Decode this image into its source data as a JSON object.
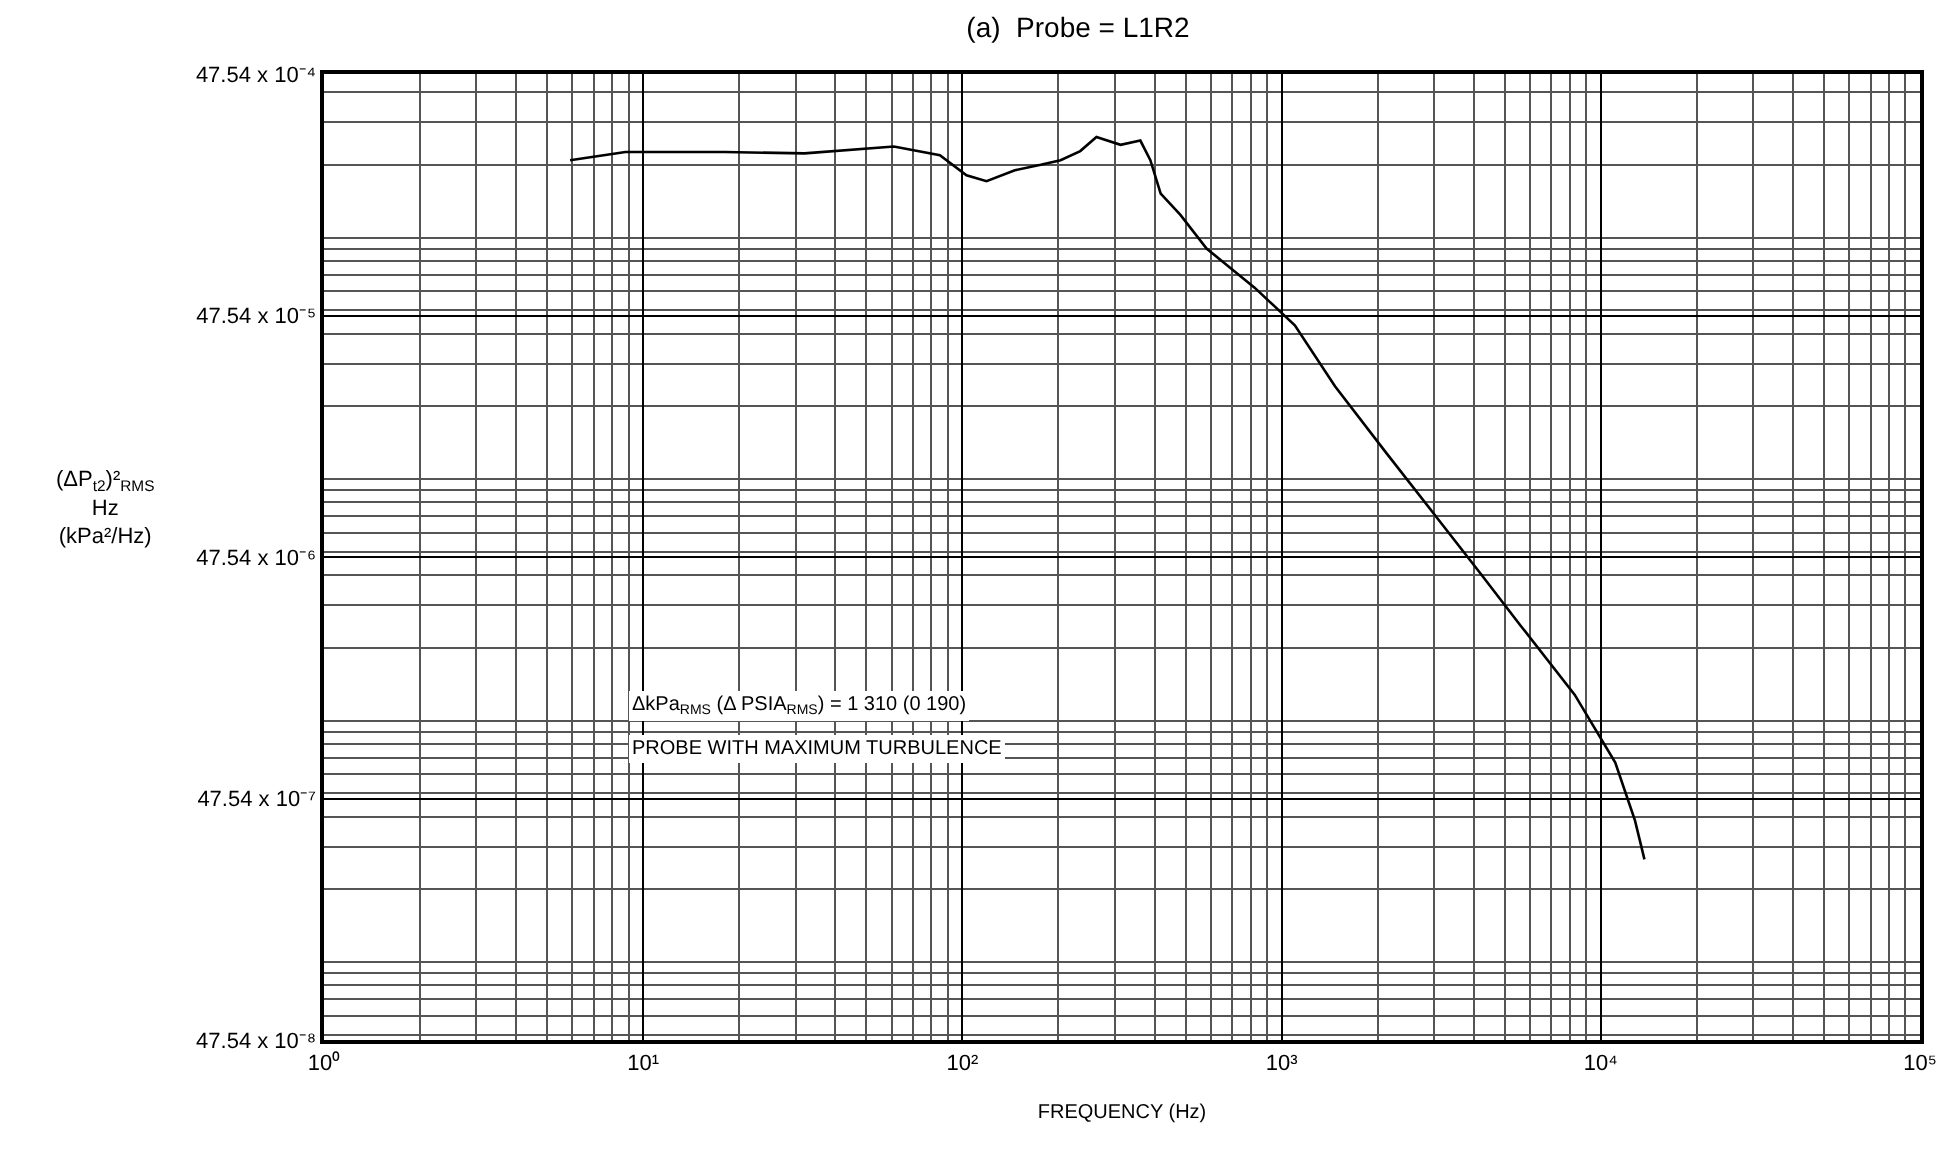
{
  "chart_data": {
    "type": "line",
    "title": "(a)  Probe = L1R2",
    "xlabel": "FREQUENCY (Hz)",
    "ylabel": "(ΔP$_{t2}$)²$_{RMS}$\nHz\n(kPa²/Hz)",
    "log": "xy",
    "grid": true,
    "marker": "none",
    "line_style": "solid",
    "annotations": [
      "ΔkPa$_{RMS}$ (Δ PSIA$_{RMS}$) = 1 310 (0 190)",
      "PROBE WITH MAXIMUM TURBULENCE"
    ],
    "xlim": [
      1,
      100000
    ],
    "ylim": [
      4.754e-07,
      0.004754
    ],
    "xticks": [
      {
        "value": 1,
        "label": "10⁰"
      },
      {
        "value": 10,
        "label": "10¹"
      },
      {
        "value": 100,
        "label": "10²"
      },
      {
        "value": 1000,
        "label": "10³"
      },
      {
        "value": 10000,
        "label": "10⁴"
      },
      {
        "value": 100000,
        "label": "10⁵"
      }
    ],
    "yticks": [
      {
        "value": 4.754e-07,
        "label": "47.54 x 10⁻⁸"
      },
      {
        "value": 4.754e-06,
        "label": "47.54 x 10⁻⁷"
      },
      {
        "value": 4.754e-05,
        "label": "47.54 x 10⁻⁶"
      },
      {
        "value": 0.0004754,
        "label": "47.54 x 10⁻⁵"
      },
      {
        "value": 0.004754,
        "label": "47.54 x 10⁻⁴"
      }
    ],
    "x": [
      5.9,
      8.8,
      18,
      32,
      61,
      85,
      103,
      119,
      146,
      176,
      203,
      234,
      263,
      313,
      361,
      388,
      418,
      482,
      582,
      823,
      1100,
      1470,
      2130,
      3020,
      4210,
      5610,
      8280,
      11100,
      12800,
      13700
    ],
    "series": [
      {
        "color": "#000000",
        "values": [
          0.00209,
          0.00226,
          0.00226,
          0.00223,
          0.00238,
          0.00219,
          0.00181,
          0.00171,
          0.0019,
          0.002,
          0.00209,
          0.00228,
          0.00261,
          0.00242,
          0.00252,
          0.00209,
          0.00152,
          0.00124,
          0.0009,
          0.00062,
          0.000433,
          0.000242,
          0.000128,
          7.1e-05,
          4.04e-05,
          2.47e-05,
          1.28e-05,
          6.7e-06,
          3.85e-06,
          2.66e-06
        ]
      }
    ]
  }
}
